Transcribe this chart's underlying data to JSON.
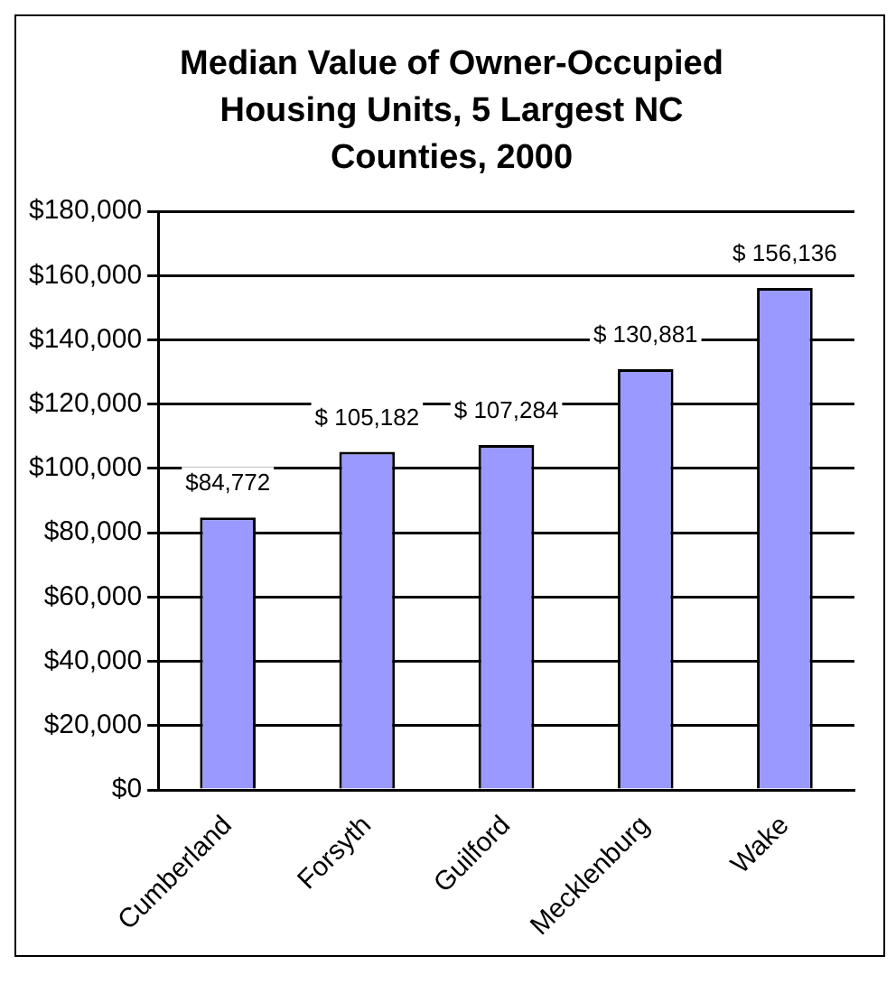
{
  "chart_data": {
    "type": "bar",
    "title": "Median Value of Owner-Occupied Housing Units, 5 Largest NC Counties, 2000",
    "categories": [
      "Cumberland",
      "Forsyth",
      "Guilford",
      "Mecklenburg",
      "Wake"
    ],
    "values": [
      84772,
      105182,
      107284,
      130881,
      156136
    ],
    "value_labels": [
      "$84,772",
      "$ 105,182",
      "$ 107,284",
      "$ 130,881",
      "$ 156,136"
    ],
    "color": "#9999ff",
    "ylim": [
      0,
      180000
    ],
    "yticks": [
      {
        "value": 0,
        "label": "$0"
      },
      {
        "value": 20000,
        "label": "$20,000"
      },
      {
        "value": 40000,
        "label": "$40,000"
      },
      {
        "value": 60000,
        "label": "$60,000"
      },
      {
        "value": 80000,
        "label": "$80,000"
      },
      {
        "value": 100000,
        "label": "$100,000"
      },
      {
        "value": 120000,
        "label": "$120,000"
      },
      {
        "value": 140000,
        "label": "$140,000"
      },
      {
        "value": 160000,
        "label": "$160,000"
      },
      {
        "value": 180000,
        "label": "$180,000"
      }
    ],
    "grid": "y",
    "legend": false
  }
}
